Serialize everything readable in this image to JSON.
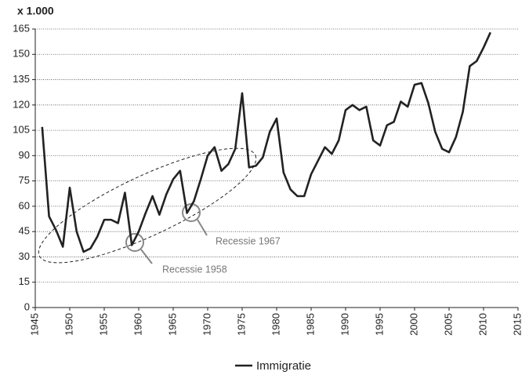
{
  "chart_data": {
    "type": "line",
    "unit_label": "x 1.000",
    "x": [
      1946,
      1947,
      1948,
      1949,
      1950,
      1951,
      1952,
      1953,
      1954,
      1955,
      1956,
      1957,
      1958,
      1959,
      1960,
      1961,
      1962,
      1963,
      1964,
      1965,
      1966,
      1967,
      1968,
      1969,
      1970,
      1971,
      1972,
      1973,
      1974,
      1975,
      1976,
      1977,
      1978,
      1979,
      1980,
      1981,
      1982,
      1983,
      1984,
      1985,
      1986,
      1987,
      1988,
      1989,
      1990,
      1991,
      1992,
      1993,
      1994,
      1995,
      1996,
      1997,
      1998,
      1999,
      2000,
      2001,
      2002,
      2003,
      2004,
      2005,
      2006,
      2007,
      2008,
      2009,
      2010,
      2011
    ],
    "series": [
      {
        "name": "Immigratie",
        "color": "#222222",
        "values": [
          107,
          54,
          46,
          36,
          71,
          45,
          33,
          35,
          42,
          52,
          52,
          50,
          68,
          37,
          45,
          56,
          66,
          55,
          67,
          76,
          81,
          56,
          63,
          76,
          90,
          95,
          81,
          85,
          94,
          127,
          83,
          84,
          89,
          104,
          112,
          80,
          70,
          66,
          66,
          79,
          87,
          95,
          91,
          99,
          117,
          120,
          117,
          119,
          99,
          96,
          108,
          110,
          122,
          119,
          132,
          133,
          121,
          104,
          94,
          92,
          101,
          116,
          143,
          146,
          154,
          163
        ]
      }
    ],
    "xlim": [
      1945,
      2015
    ],
    "xticks": [
      1945,
      1950,
      1955,
      1960,
      1965,
      1970,
      1975,
      1980,
      1985,
      1990,
      1995,
      2000,
      2005,
      2010,
      2015
    ],
    "ylim": [
      0,
      165
    ],
    "yticks": [
      0,
      15,
      30,
      45,
      60,
      75,
      90,
      105,
      120,
      135,
      150,
      165
    ],
    "grid": true,
    "legend": "bottom",
    "annotations": [
      "Recessie 1958",
      "Recessie 1967"
    ]
  }
}
